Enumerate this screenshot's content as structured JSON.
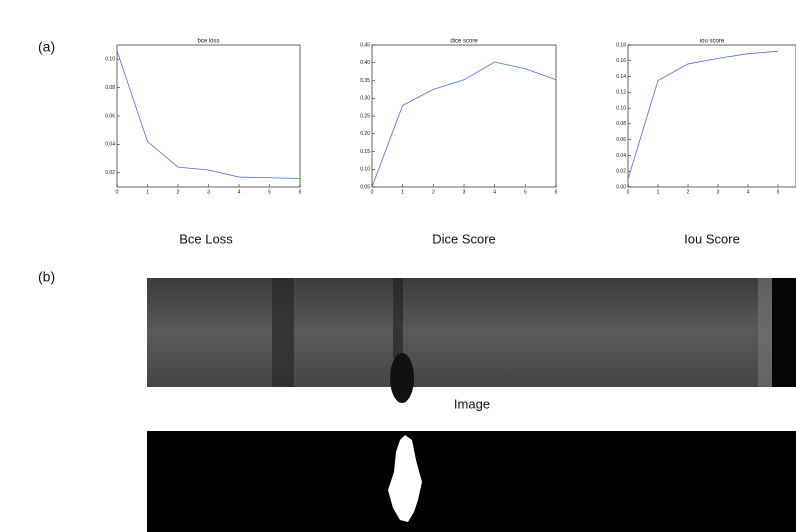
{
  "labels": {
    "a": "(a)",
    "b": "(b)"
  },
  "chart_data": [
    {
      "type": "line",
      "title": "bce loss",
      "color": "#4a6fdc",
      "x": [
        0,
        1,
        2,
        3,
        4,
        5,
        6
      ],
      "values": [
        0.106,
        0.042,
        0.024,
        0.022,
        0.017,
        0.0165,
        0.016
      ],
      "xlim": [
        0,
        6
      ],
      "xticks": [
        0,
        1,
        2,
        3,
        4,
        5,
        6
      ],
      "ylim": [
        0.01,
        0.11
      ],
      "yticks": [
        0.02,
        0.04,
        0.06,
        0.08,
        {
          "value": 0.1,
          "label": "0.10"
        }
      ]
    },
    {
      "type": "line",
      "title": "dice score",
      "color": "#4a6fdc",
      "x": [
        0,
        1,
        2,
        3,
        4,
        5,
        6
      ],
      "values": [
        0.05,
        0.28,
        0.325,
        0.352,
        0.402,
        0.383,
        0.352
      ],
      "xlim": [
        0,
        6
      ],
      "xticks": [
        0,
        1,
        2,
        3,
        4,
        5,
        6
      ],
      "ylim": [
        0.05,
        0.45
      ],
      "yticks": [
        0.05,
        {
          "value": 0.1,
          "label": "0.10"
        },
        0.15,
        {
          "value": 0.2,
          "label": "0.20"
        },
        0.25,
        {
          "value": 0.3,
          "label": "0.30"
        },
        0.35,
        {
          "value": 0.4,
          "label": "0.40"
        },
        0.45
      ]
    },
    {
      "type": "line",
      "title": "iou score",
      "color": "#4a6fdc",
      "x": [
        0,
        1,
        2,
        3,
        4,
        5
      ],
      "values": [
        0.01,
        0.135,
        0.156,
        0.163,
        0.169,
        0.172
      ],
      "xlim": [
        0,
        5.6
      ],
      "xticks": [
        0,
        1,
        2,
        3,
        4,
        5
      ],
      "ylim": [
        0,
        0.18
      ],
      "yticks": [
        {
          "value": 0,
          "label": "0.00"
        },
        0.02,
        0.04,
        0.06,
        0.08,
        {
          "value": 0.1,
          "label": "0.10"
        },
        0.12,
        0.14,
        0.16,
        0.18
      ]
    }
  ],
  "captions": [
    "Bce Loss",
    "Dice Score",
    "Iou Score"
  ],
  "image_caption": "Image"
}
